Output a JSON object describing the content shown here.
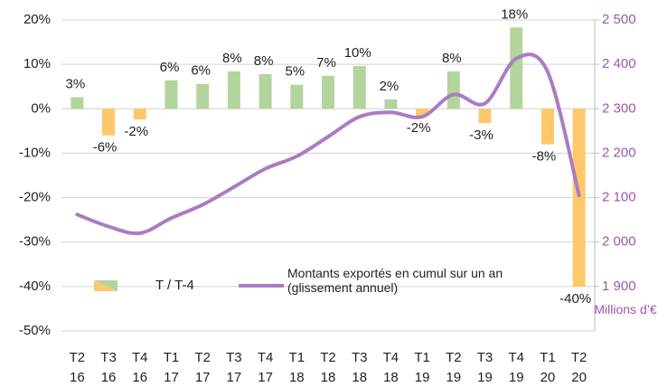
{
  "chart_data": {
    "type": "bar-line",
    "categories": [
      [
        "T2",
        "16"
      ],
      [
        "T3",
        "16"
      ],
      [
        "T4",
        "16"
      ],
      [
        "T1",
        "17"
      ],
      [
        "T2",
        "17"
      ],
      [
        "T3",
        "17"
      ],
      [
        "T4",
        "17"
      ],
      [
        "T1",
        "18"
      ],
      [
        "T2",
        "18"
      ],
      [
        "T3",
        "18"
      ],
      [
        "T4",
        "18"
      ],
      [
        "T1",
        "19"
      ],
      [
        "T2",
        "19"
      ],
      [
        "T3",
        "19"
      ],
      [
        "T4",
        "19"
      ],
      [
        "T1",
        "20"
      ],
      [
        "T2",
        "20"
      ]
    ],
    "series": [
      {
        "name": "T / T-4",
        "type": "bar",
        "color": "#b3d49d",
        "negative_color": "#fec86a",
        "values": [
          2.6,
          -6,
          -2.4,
          6.4,
          5.6,
          8.4,
          7.8,
          5.4,
          7.4,
          9.6,
          2.1,
          -1.6,
          8.4,
          -3.2,
          18.3,
          -8,
          -40
        ],
        "value_labels": [
          "3%",
          "-6%",
          "-2%",
          "6%",
          "6%",
          "8%",
          "8%",
          "5%",
          "7%",
          "10%",
          "2%",
          "-2%",
          "8%",
          "-3%",
          "18%",
          "-8%",
          "-40%"
        ]
      },
      {
        "name": "Montants exportés en cumul sur un an (glissement annuel)",
        "type": "line",
        "axis": "y2",
        "color": "#a97cc4",
        "values": [
          2062,
          2035,
          2020,
          2054,
          2084,
          2124,
          2165,
          2193,
          2237,
          2282,
          2292,
          2282,
          2332,
          2312,
          2413,
          2383,
          2105
        ]
      }
    ],
    "ylim": [
      -50,
      20
    ],
    "yticks": [
      {
        "value": -50,
        "label": "-50%"
      },
      {
        "value": -40,
        "label": "-40%"
      },
      {
        "value": -30,
        "label": "-30%"
      },
      {
        "value": -20,
        "label": "-20%"
      },
      {
        "value": -10,
        "label": "-10%"
      },
      {
        "value": 0,
        "label": "0%"
      },
      {
        "value": 10,
        "label": "10%"
      },
      {
        "value": 20,
        "label": "20%"
      }
    ],
    "y2lim": [
      1800,
      2500
    ],
    "y2ticks": [
      {
        "value": 1900,
        "label": "1 900"
      },
      {
        "value": 2000,
        "label": "2 000"
      },
      {
        "value": 2100,
        "label": "2 100"
      },
      {
        "value": 2200,
        "label": "2 200"
      },
      {
        "value": 2300,
        "label": "2 300"
      },
      {
        "value": 2400,
        "label": "2 400"
      },
      {
        "value": 2500,
        "label": "2 500"
      }
    ],
    "y2label": "Millions d’€",
    "y2color": "#a056b0",
    "grid": true,
    "legend": "lower left"
  }
}
